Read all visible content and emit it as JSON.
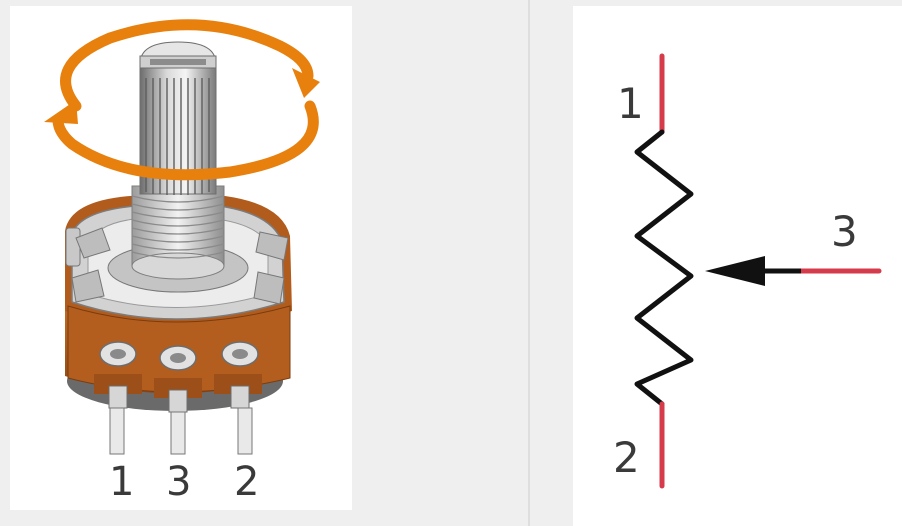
{
  "potentiometer_illustration": {
    "pin_labels": [
      "1",
      "3",
      "2"
    ]
  },
  "schematic_symbol": {
    "terminal_labels": {
      "top": "1",
      "wiper": "3",
      "bottom": "2"
    }
  },
  "colors": {
    "rotation_arrow": "#e8800e",
    "body_brown": "#a9551a",
    "terminal_lead": "#d53b4a",
    "zigzag": "#111111"
  }
}
